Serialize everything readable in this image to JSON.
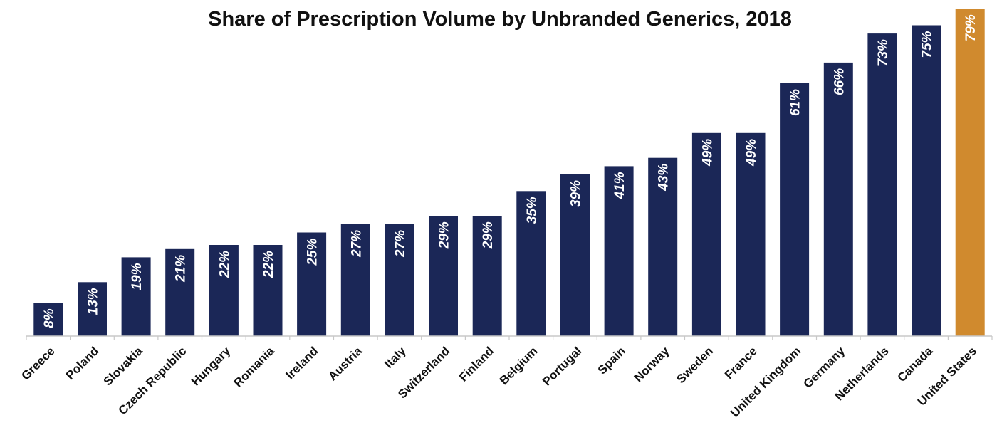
{
  "chart_data": {
    "type": "bar",
    "title": "Share of Prescription Volume by Unbranded Generics, 2018",
    "xlabel": "",
    "ylabel": "",
    "ylim": [
      0,
      80
    ],
    "grid": false,
    "legend": "none",
    "categories": [
      "Greece",
      "Poland",
      "Slovakia",
      "Czech Republic",
      "Hungary",
      "Romania",
      "Ireland",
      "Austria",
      "Italy",
      "Switzerland",
      "Finland",
      "Belgium",
      "Portugal",
      "Spain",
      "Norway",
      "Sweden",
      "France",
      "United Kingdom",
      "Germany",
      "Netherlands",
      "Canada",
      "United States"
    ],
    "values": [
      8,
      13,
      19,
      21,
      22,
      22,
      25,
      27,
      27,
      29,
      29,
      35,
      39,
      41,
      43,
      49,
      49,
      61,
      66,
      73,
      75,
      79
    ],
    "data_labels": [
      "8%",
      "13%",
      "19%",
      "21%",
      "22%",
      "22%",
      "25%",
      "27%",
      "27%",
      "29%",
      "29%",
      "35%",
      "39%",
      "41%",
      "43%",
      "49%",
      "49%",
      "61%",
      "66%",
      "73%",
      "75%",
      "79%"
    ],
    "highlight_category": "United States",
    "colors": {
      "bar": "#1b2757",
      "highlight": "#d08a2e",
      "label": "#ffffff",
      "axis": "#c8c8c8"
    }
  }
}
